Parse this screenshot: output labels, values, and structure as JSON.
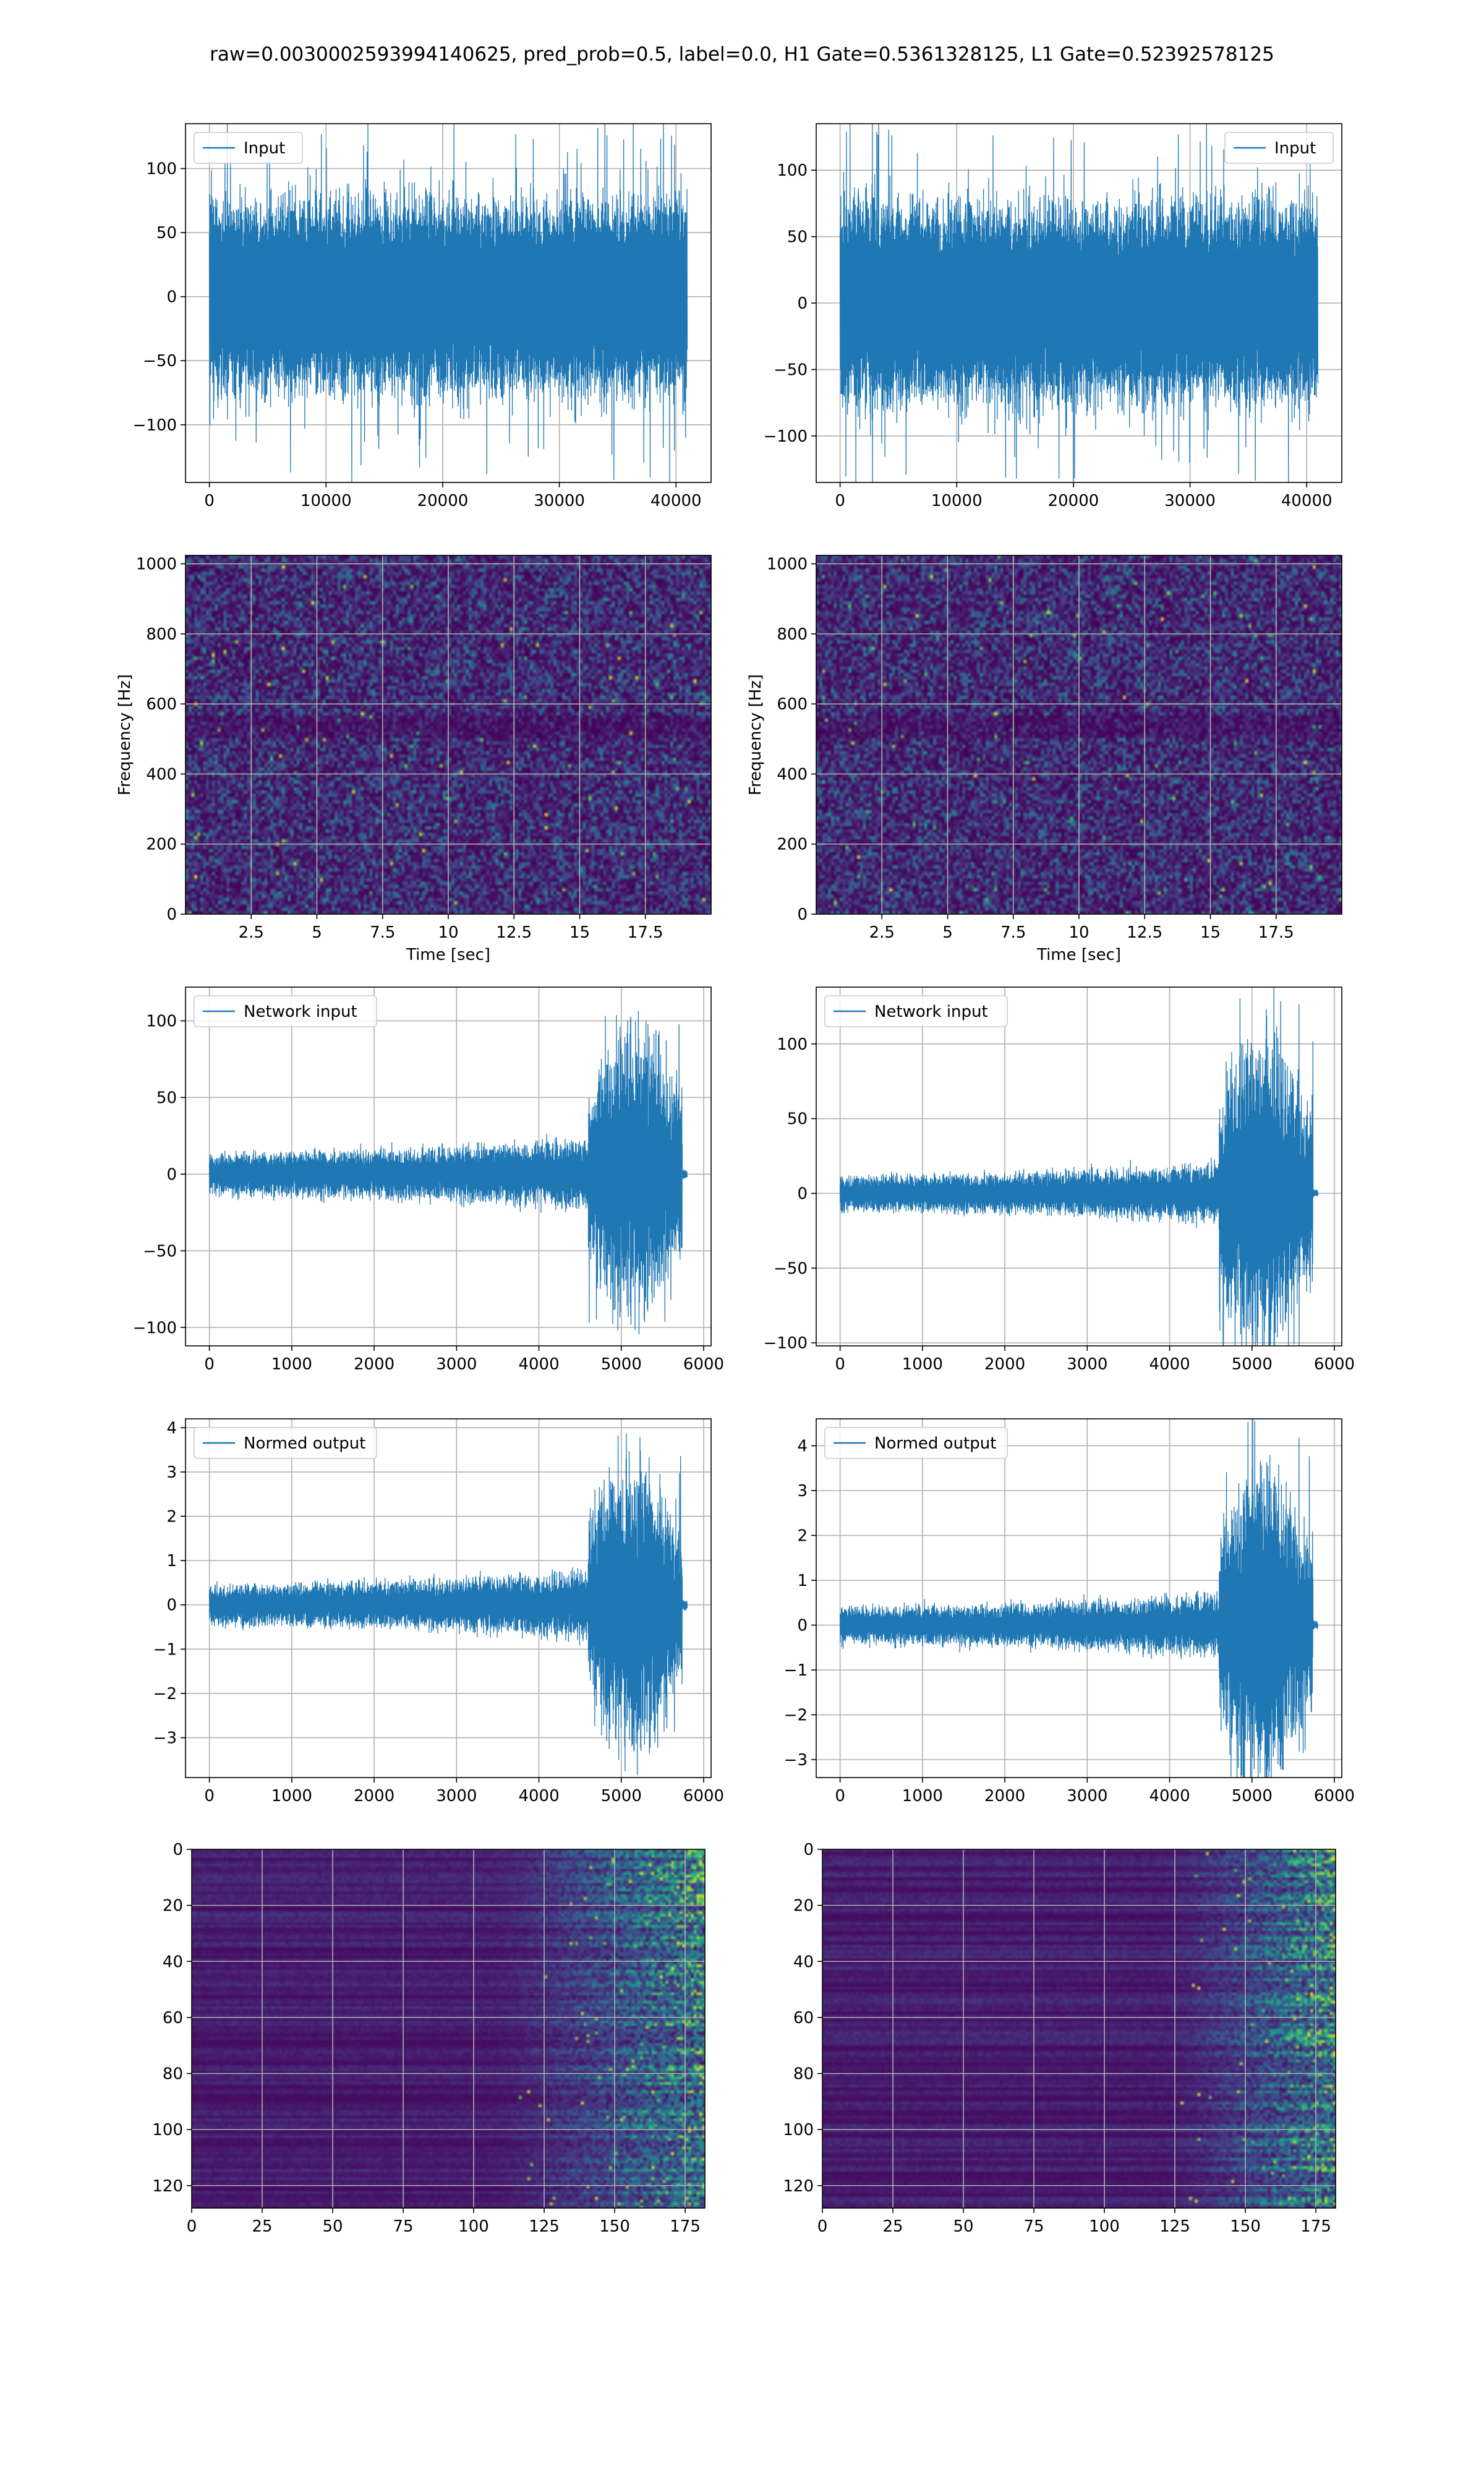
{
  "figure": {
    "suptitle": "raw=0.0030002593994140625, pred_prob=0.5, label=0.0, H1 Gate=0.5361328125, L1 Gate=0.52392578125"
  },
  "colors": {
    "line": "#1f77b4",
    "viridis_dark": "#440154",
    "viridis_teal": "#21918c",
    "viridis_green": "#5ec962",
    "viridis_yellow": "#fde725"
  },
  "chart_data": [
    {
      "id": "input-h1",
      "type": "line",
      "legend": "Input",
      "legend_loc": "upper left",
      "x_range": [
        0,
        40960
      ],
      "ylim": [
        -145,
        135
      ],
      "xticks": [
        0,
        10000,
        20000,
        30000,
        40000
      ],
      "yticks": [
        -100,
        -50,
        0,
        50,
        100
      ],
      "envelope": "stationary",
      "amplitude": 75,
      "peak": 125,
      "grid": true
    },
    {
      "id": "input-l1",
      "type": "line",
      "legend": "Input",
      "legend_loc": "upper right",
      "x_range": [
        0,
        40960
      ],
      "ylim": [
        -135,
        135
      ],
      "xticks": [
        0,
        10000,
        20000,
        30000,
        40000
      ],
      "yticks": [
        -100,
        -50,
        0,
        50,
        100
      ],
      "envelope": "stationary",
      "amplitude": 75,
      "peak": 125,
      "grid": true
    },
    {
      "id": "spectrogram-h1",
      "type": "heatmap",
      "colormap": "viridis",
      "xlim": [
        0,
        20
      ],
      "ylim": [
        0,
        1024
      ],
      "xticks": [
        2.5,
        5.0,
        7.5,
        10.0,
        12.5,
        15.0,
        17.5
      ],
      "yticks": [
        0,
        200,
        400,
        600,
        800,
        1000
      ],
      "xlabel": "Time [sec]",
      "ylabel": "Frequency [Hz]",
      "grid": true
    },
    {
      "id": "spectrogram-l1",
      "type": "heatmap",
      "colormap": "viridis",
      "xlim": [
        0,
        20
      ],
      "ylim": [
        0,
        1024
      ],
      "xticks": [
        2.5,
        5.0,
        7.5,
        10.0,
        12.5,
        15.0,
        17.5
      ],
      "yticks": [
        0,
        200,
        400,
        600,
        800,
        1000
      ],
      "xlabel": "Time [sec]",
      "ylabel": "Frequency [Hz]",
      "grid": true
    },
    {
      "id": "network-input-h1",
      "type": "line",
      "legend": "Network input",
      "legend_loc": "upper left",
      "x_range": [
        0,
        5800
      ],
      "ylim": [
        -112,
        122
      ],
      "xticks": [
        0,
        1000,
        2000,
        3000,
        4000,
        5000,
        6000
      ],
      "yticks": [
        -100,
        -50,
        0,
        50,
        100
      ],
      "envelope": "chirp",
      "base_amplitude": 15,
      "peak": 112,
      "chirp_start": 4600,
      "chirp_end": 5740,
      "grid": true
    },
    {
      "id": "network-input-l1",
      "type": "line",
      "legend": "Network input",
      "legend_loc": "upper left",
      "x_range": [
        0,
        5800
      ],
      "ylim": [
        -102,
        138
      ],
      "xticks": [
        0,
        1000,
        2000,
        3000,
        4000,
        5000,
        6000
      ],
      "yticks": [
        -100,
        -50,
        0,
        50,
        100
      ],
      "envelope": "chirp",
      "base_amplitude": 13,
      "peak": 125,
      "chirp_start": 4600,
      "chirp_end": 5740,
      "grid": true
    },
    {
      "id": "normed-output-h1",
      "type": "line",
      "legend": "Normed output",
      "legend_loc": "upper left",
      "x_range": [
        0,
        5800
      ],
      "ylim": [
        -3.9,
        4.2
      ],
      "xticks": [
        0,
        1000,
        2000,
        3000,
        4000,
        5000,
        6000
      ],
      "yticks": [
        -3,
        -2,
        -1,
        0,
        1,
        2,
        3,
        4
      ],
      "envelope": "chirp",
      "base_amplitude": 0.5,
      "peak": 3.85,
      "chirp_start": 4600,
      "chirp_end": 5740,
      "grid": true
    },
    {
      "id": "normed-output-l1",
      "type": "line",
      "legend": "Normed output",
      "legend_loc": "upper left",
      "x_range": [
        0,
        5800
      ],
      "ylim": [
        -3.4,
        4.6
      ],
      "xticks": [
        0,
        1000,
        2000,
        3000,
        4000,
        5000,
        6000
      ],
      "yticks": [
        -3,
        -2,
        -1,
        0,
        1,
        2,
        3,
        4
      ],
      "envelope": "chirp",
      "base_amplitude": 0.45,
      "peak": 4.2,
      "chirp_start": 4600,
      "chirp_end": 5740,
      "grid": true
    },
    {
      "id": "feature-map-h1",
      "type": "heatmap",
      "colormap": "viridis",
      "xlim": [
        0,
        182
      ],
      "ylim": [
        128,
        0
      ],
      "rows": 128,
      "cols": 182,
      "onset_col": 105,
      "xticks": [
        0,
        25,
        50,
        75,
        100,
        125,
        150,
        175
      ],
      "yticks": [
        0,
        20,
        40,
        60,
        80,
        100,
        120
      ],
      "grid": true
    },
    {
      "id": "feature-map-l1",
      "type": "heatmap",
      "colormap": "viridis",
      "xlim": [
        0,
        182
      ],
      "ylim": [
        128,
        0
      ],
      "rows": 128,
      "cols": 182,
      "onset_col": 120,
      "xticks": [
        0,
        25,
        50,
        75,
        100,
        125,
        150,
        175
      ],
      "yticks": [
        0,
        20,
        40,
        60,
        80,
        100,
        120
      ],
      "grid": true
    }
  ]
}
